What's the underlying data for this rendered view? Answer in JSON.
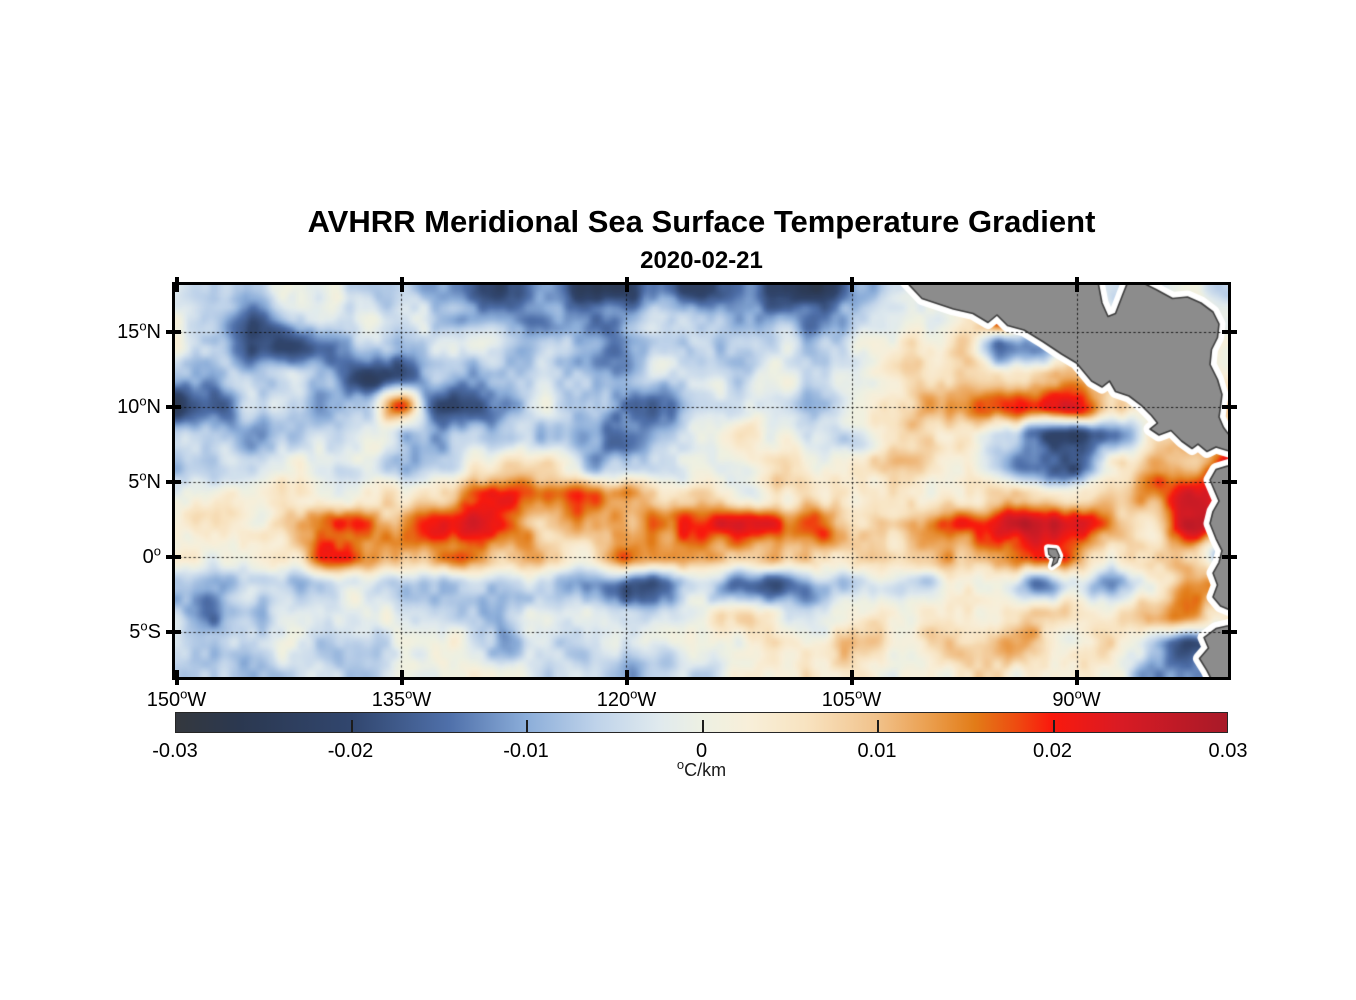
{
  "chart_data": {
    "type": "heatmap",
    "title": "AVHRR Meridional Sea Surface Temperature Gradient",
    "subtitle": "2020-02-21",
    "lon_range": [
      -150.1,
      -79.9
    ],
    "lat_range": [
      18.1,
      -8.03
    ],
    "grid_dotted": true,
    "x_ticks": [
      {
        "lon": -150,
        "base": "150",
        "deg": "o",
        "dir": "W"
      },
      {
        "lon": -135,
        "base": "135",
        "deg": "o",
        "dir": "W"
      },
      {
        "lon": -120,
        "base": "120",
        "deg": "o",
        "dir": "W"
      },
      {
        "lon": -105,
        "base": "105",
        "deg": "o",
        "dir": "W"
      },
      {
        "lon": -90,
        "base": "90",
        "deg": "o",
        "dir": "W"
      }
    ],
    "y_ticks": [
      {
        "lat": 15,
        "base": "15",
        "deg": "o",
        "dir": "N"
      },
      {
        "lat": 10,
        "base": "10",
        "deg": "o",
        "dir": "N"
      },
      {
        "lat": 5,
        "base": "5",
        "deg": "o",
        "dir": "N"
      },
      {
        "lat": 0,
        "base": "0",
        "deg": "o",
        "dir": ""
      },
      {
        "lat": -5,
        "base": "5",
        "deg": "o",
        "dir": "S"
      }
    ],
    "colorbar": {
      "vmin": -0.03,
      "vmax": 0.03,
      "ticks": [
        -0.03,
        -0.02,
        -0.01,
        0,
        0.01,
        0.02,
        0.03
      ],
      "tick_labels": [
        "-0.03",
        "-0.02",
        "-0.01",
        "0",
        "0.01",
        "0.02",
        "0.03"
      ],
      "unit_deg": "o",
      "unit_base": "C/km",
      "stops": [
        {
          "t": 0.0,
          "c": "#34383e"
        },
        {
          "t": 0.06,
          "c": "#2b3850"
        },
        {
          "t": 0.167,
          "c": "#31466e"
        },
        {
          "t": 0.26,
          "c": "#4f70aa"
        },
        {
          "t": 0.333,
          "c": "#8badd9"
        },
        {
          "t": 0.4,
          "c": "#bfd3ea"
        },
        {
          "t": 0.46,
          "c": "#e0eaee"
        },
        {
          "t": 0.5,
          "c": "#edf0e3"
        },
        {
          "t": 0.545,
          "c": "#f8efd9"
        },
        {
          "t": 0.6,
          "c": "#f8e3c0"
        },
        {
          "t": 0.667,
          "c": "#f1c28b"
        },
        {
          "t": 0.72,
          "c": "#ea9c4a"
        },
        {
          "t": 0.76,
          "c": "#e27c18"
        },
        {
          "t": 0.8,
          "c": "#ee4b10"
        },
        {
          "t": 0.833,
          "c": "#fa190d"
        },
        {
          "t": 0.9,
          "c": "#d81b24"
        },
        {
          "t": 1.0,
          "c": "#a81a28"
        }
      ]
    },
    "field_grid": {
      "comment_units": "degC per km, sampled on lon -150..-80 step 2.5, lat 18..-8 step 2",
      "lon_start": -150,
      "lon_step": 2.5,
      "ncols": 29,
      "lat_start": 18,
      "lat_step": -2,
      "nrows": 14,
      "values": [
        [
          -0.006,
          -0.004,
          -0.008,
          -0.004,
          -0.003,
          -0.006,
          -0.01,
          -0.014,
          -0.018,
          -0.02,
          -0.016,
          -0.02,
          -0.022,
          -0.018,
          -0.016,
          -0.012,
          -0.018,
          -0.02,
          -0.014,
          -0.008,
          -0.004,
          -0.003,
          -0.002,
          -0.002,
          -0.002,
          -0.002,
          -0.003,
          -0.002,
          -0.002
        ],
        [
          -0.003,
          -0.005,
          -0.012,
          -0.008,
          -0.004,
          -0.005,
          -0.007,
          -0.01,
          -0.014,
          -0.012,
          -0.008,
          -0.012,
          -0.008,
          -0.006,
          -0.005,
          -0.008,
          -0.012,
          -0.014,
          -0.01,
          -0.004,
          0.0,
          0.004,
          0.024,
          0.004,
          -0.002,
          -0.002,
          0.002,
          0.003,
          0.002
        ],
        [
          -0.003,
          -0.006,
          -0.018,
          -0.02,
          -0.015,
          -0.005,
          -0.009,
          -0.004,
          -0.004,
          -0.006,
          -0.004,
          -0.01,
          -0.008,
          -0.006,
          -0.004,
          -0.003,
          -0.006,
          -0.008,
          -0.004,
          -0.002,
          0.004,
          0.012,
          -0.018,
          -0.012,
          0.004,
          0.002,
          0.003,
          0.002,
          0.002
        ],
        [
          -0.008,
          -0.01,
          -0.006,
          -0.004,
          -0.008,
          -0.02,
          -0.018,
          -0.006,
          -0.01,
          -0.004,
          -0.003,
          -0.006,
          -0.008,
          -0.004,
          -0.002,
          -0.003,
          -0.002,
          -0.004,
          -0.002,
          0.002,
          0.006,
          0.008,
          0.006,
          0.008,
          0.01,
          0.008,
          0.002,
          0.002,
          0.002
        ],
        [
          -0.018,
          -0.014,
          -0.006,
          -0.008,
          -0.012,
          -0.004,
          0.018,
          -0.02,
          -0.016,
          -0.008,
          -0.004,
          -0.006,
          -0.016,
          -0.012,
          -0.006,
          -0.004,
          -0.002,
          -0.004,
          -0.002,
          0.006,
          0.014,
          0.018,
          0.016,
          0.02,
          0.026,
          0.01,
          0.002,
          0.004,
          0.004
        ],
        [
          -0.004,
          -0.006,
          -0.014,
          -0.012,
          -0.006,
          -0.004,
          -0.008,
          -0.006,
          -0.004,
          -0.006,
          -0.008,
          -0.014,
          -0.016,
          -0.008,
          -0.004,
          0.008,
          -0.002,
          -0.004,
          -0.006,
          0.002,
          0.004,
          0.006,
          -0.006,
          -0.02,
          -0.027,
          -0.018,
          0.006,
          0.018,
          0.008
        ],
        [
          -0.003,
          -0.004,
          -0.006,
          -0.004,
          -0.002,
          -0.004,
          -0.006,
          -0.003,
          0.004,
          0.008,
          0.006,
          -0.012,
          -0.008,
          -0.004,
          -0.002,
          0.002,
          0.004,
          0.002,
          0.004,
          0.006,
          0.008,
          0.004,
          -0.008,
          -0.014,
          -0.018,
          0.002,
          0.014,
          0.01,
          0.02
        ],
        [
          0.002,
          0.004,
          0.002,
          0.004,
          0.002,
          0.004,
          0.006,
          0.008,
          0.018,
          0.02,
          0.016,
          0.014,
          0.012,
          0.008,
          0.004,
          0.002,
          0.004,
          0.006,
          0.004,
          0.006,
          0.004,
          0.006,
          0.008,
          0.004,
          0.006,
          0.008,
          0.016,
          0.024,
          0.012
        ],
        [
          0.004,
          0.002,
          0.006,
          0.01,
          0.016,
          0.018,
          0.014,
          0.02,
          0.024,
          0.018,
          0.01,
          0.008,
          0.012,
          0.016,
          0.018,
          0.02,
          0.022,
          0.016,
          0.008,
          0.012,
          0.018,
          0.022,
          0.024,
          0.022,
          0.022,
          0.012,
          0.008,
          0.026,
          0.02
        ],
        [
          0.002,
          0.004,
          0.004,
          0.008,
          0.022,
          0.012,
          0.014,
          0.012,
          0.016,
          0.01,
          0.006,
          0.004,
          0.014,
          0.016,
          0.014,
          0.012,
          0.01,
          0.008,
          0.006,
          0.01,
          0.014,
          0.016,
          0.018,
          0.022,
          0.016,
          0.008,
          0.004,
          0.012,
          -0.01
        ],
        [
          -0.004,
          -0.008,
          -0.004,
          -0.006,
          -0.01,
          -0.004,
          -0.008,
          -0.006,
          -0.004,
          -0.006,
          -0.008,
          -0.014,
          -0.018,
          -0.012,
          -0.006,
          -0.016,
          -0.014,
          -0.006,
          -0.004,
          -0.002,
          -0.004,
          0.004,
          0.002,
          -0.014,
          -0.006,
          -0.012,
          -0.006,
          0.016,
          0.022
        ],
        [
          -0.004,
          -0.012,
          -0.008,
          -0.004,
          -0.006,
          -0.004,
          -0.002,
          -0.006,
          -0.008,
          -0.004,
          -0.006,
          -0.004,
          -0.006,
          -0.004,
          -0.002,
          0.004,
          0.002,
          -0.002,
          0.004,
          0.006,
          0.008,
          0.006,
          0.004,
          0.008,
          0.006,
          0.002,
          0.008,
          0.018,
          0.006
        ],
        [
          -0.004,
          -0.006,
          -0.004,
          -0.002,
          -0.01,
          -0.008,
          -0.004,
          -0.002,
          -0.004,
          -0.01,
          -0.008,
          -0.006,
          -0.006,
          -0.008,
          -0.004,
          -0.002,
          0.004,
          0.008,
          0.01,
          0.008,
          0.006,
          0.01,
          0.012,
          0.006,
          0.004,
          0.002,
          -0.008,
          -0.016,
          -0.02
        ],
        [
          -0.002,
          -0.004,
          -0.006,
          -0.003,
          -0.002,
          -0.004,
          -0.002,
          -0.004,
          -0.002,
          -0.004,
          -0.006,
          -0.008,
          -0.01,
          -0.006,
          -0.002,
          0.002,
          0.004,
          0.006,
          0.008,
          0.006,
          0.004,
          0.008,
          0.006,
          0.004,
          0.002,
          -0.004,
          -0.01,
          -0.014,
          -0.018
        ]
      ]
    },
    "land": {
      "fill": "#8c8c8c",
      "outline": "#3d3d3d",
      "coast_halo": "#ffffff",
      "polygons": [
        {
          "name": "central-america-mainland",
          "points": [
            [
              -102.0,
              19.0
            ],
            [
              -100.3,
              17.2
            ],
            [
              -98.2,
              16.5
            ],
            [
              -96.9,
              16.2
            ],
            [
              -95.9,
              15.6
            ],
            [
              -95.3,
              16.1
            ],
            [
              -94.6,
              15.4
            ],
            [
              -93.5,
              15.1
            ],
            [
              -92.2,
              14.3
            ],
            [
              -91.0,
              13.5
            ],
            [
              -90.0,
              12.9
            ],
            [
              -89.5,
              12.3
            ],
            [
              -89.0,
              11.7
            ],
            [
              -88.3,
              11.3
            ],
            [
              -87.8,
              11.7
            ],
            [
              -87.4,
              11.0
            ],
            [
              -86.5,
              10.7
            ],
            [
              -85.7,
              10.1
            ],
            [
              -85.0,
              9.4
            ],
            [
              -84.6,
              8.9
            ],
            [
              -85.1,
              8.5
            ],
            [
              -84.5,
              8.1
            ],
            [
              -83.7,
              8.4
            ],
            [
              -83.0,
              7.7
            ],
            [
              -82.3,
              7.2
            ],
            [
              -81.9,
              7.5
            ],
            [
              -81.3,
              7.0
            ],
            [
              -80.7,
              7.3
            ],
            [
              -79.4,
              6.9
            ],
            [
              -79.6,
              7.8
            ],
            [
              -80.2,
              8.6
            ],
            [
              -80.5,
              9.3
            ],
            [
              -80.4,
              10.0
            ],
            [
              -80.3,
              10.8
            ],
            [
              -80.6,
              11.8
            ],
            [
              -81.1,
              12.8
            ],
            [
              -81.0,
              13.8
            ],
            [
              -80.6,
              14.6
            ],
            [
              -80.5,
              15.5
            ],
            [
              -80.9,
              16.3
            ],
            [
              -81.7,
              16.9
            ],
            [
              -82.6,
              17.3
            ],
            [
              -83.6,
              17.2
            ],
            [
              -84.7,
              17.8
            ],
            [
              -85.7,
              18.3
            ],
            [
              -86.3,
              19.0
            ],
            [
              -86.9,
              17.5
            ],
            [
              -87.4,
              16.2
            ],
            [
              -87.9,
              16.0
            ],
            [
              -88.3,
              16.9
            ],
            [
              -88.7,
              19.0
            ]
          ]
        },
        {
          "name": "south-america-northwest",
          "points": [
            [
              -79.4,
              6.2
            ],
            [
              -80.7,
              5.8
            ],
            [
              -81.1,
              5.1
            ],
            [
              -80.8,
              4.4
            ],
            [
              -80.5,
              3.7
            ],
            [
              -80.9,
              3.0
            ],
            [
              -81.1,
              2.2
            ],
            [
              -80.7,
              1.2
            ],
            [
              -80.3,
              0.4
            ],
            [
              -80.5,
              -0.4
            ],
            [
              -80.9,
              -1.1
            ],
            [
              -80.6,
              -1.9
            ],
            [
              -80.9,
              -2.7
            ],
            [
              -80.4,
              -3.3
            ],
            [
              -79.4,
              -3.7
            ]
          ]
        },
        {
          "name": "south-america-peru",
          "points": [
            [
              -79.4,
              -4.5
            ],
            [
              -80.7,
              -4.8
            ],
            [
              -81.5,
              -5.4
            ],
            [
              -81.2,
              -6.1
            ],
            [
              -81.8,
              -6.8
            ],
            [
              -81.3,
              -7.6
            ],
            [
              -80.9,
              -8.4
            ],
            [
              -79.4,
              -8.4
            ]
          ]
        }
      ],
      "islands": [
        {
          "name": "galapagos",
          "points": [
            [
              -91.9,
              0.55
            ],
            [
              -91.35,
              0.5
            ],
            [
              -91.15,
              0.05
            ],
            [
              -91.3,
              -0.4
            ],
            [
              -91.65,
              -0.65
            ],
            [
              -91.5,
              -0.15
            ],
            [
              -91.85,
              0.15
            ]
          ]
        }
      ]
    }
  }
}
